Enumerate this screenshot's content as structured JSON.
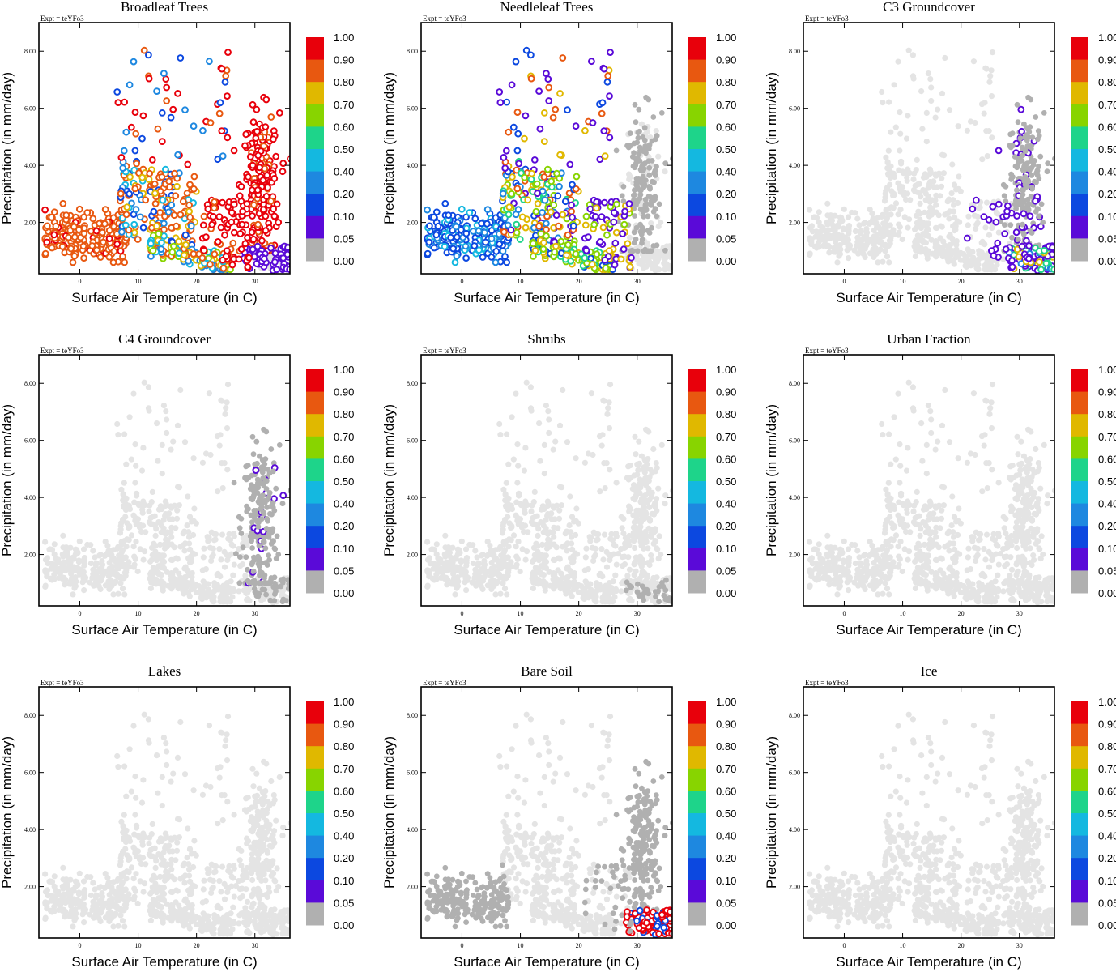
{
  "chart_data": {
    "type": "scatter",
    "layout": "3x3 panel grid",
    "expt_label": "Expt = teYFo3",
    "xlabel": "Surface Air Temperature (in C)",
    "ylabel": "Precipitation (in mm/day)",
    "xlim": [
      -7,
      36
    ],
    "ylim": [
      0.2,
      9.0
    ],
    "x_ticks": [
      0,
      10,
      20,
      30
    ],
    "x_tick_labels": [
      "0",
      "10",
      "20",
      "30"
    ],
    "y_ticks": [
      2,
      4,
      6,
      8
    ],
    "y_tick_labels": [
      "2.00",
      "4.00",
      "6.00",
      "8.00"
    ],
    "colorbar": {
      "levels": [
        "1.00",
        "0.90",
        "0.80",
        "0.70",
        "0.60",
        "0.50",
        "0.40",
        "0.20",
        "0.10",
        "0.05",
        "0.00"
      ],
      "colors": [
        "#e8000b",
        "#e85810",
        "#e0b800",
        "#88d400",
        "#1ed48a",
        "#14b8e0",
        "#1e88e0",
        "#0c48e0",
        "#5a0ad8",
        "#b0b0b0"
      ]
    },
    "background_color": "#e4e4e4",
    "panels": [
      {
        "title": "Broadleaf Trees",
        "kind": "broadleaf"
      },
      {
        "title": "Needleleaf Trees",
        "kind": "needleleaf"
      },
      {
        "title": "C3 Groundcover",
        "kind": "c3"
      },
      {
        "title": "C4 Groundcover",
        "kind": "c4"
      },
      {
        "title": "Shrubs",
        "kind": "shrubs"
      },
      {
        "title": "Urban Fraction",
        "kind": "empty"
      },
      {
        "title": "Lakes",
        "kind": "empty"
      },
      {
        "title": "Bare Soil",
        "kind": "baresoil"
      },
      {
        "title": "Ice",
        "kind": "empty"
      }
    ]
  }
}
